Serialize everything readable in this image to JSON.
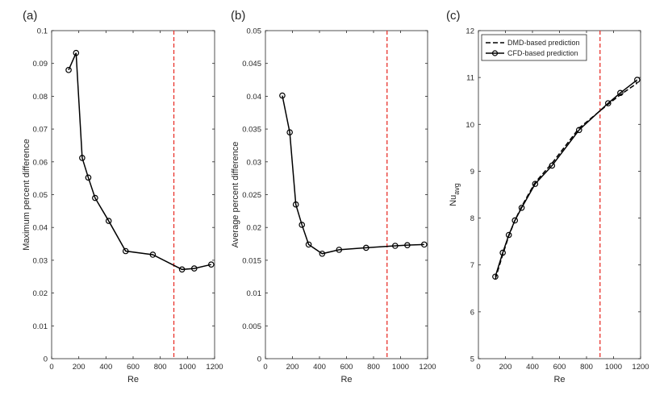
{
  "chart_data": [
    {
      "type": "line",
      "panel_label": "(a)",
      "xlabel": "Re",
      "ylabel": "Maximum percent difference",
      "xlim": [
        0,
        1200
      ],
      "ylim": [
        0,
        0.1
      ],
      "xticks": [
        0,
        200,
        400,
        600,
        800,
        1000,
        1200
      ],
      "yticks": [
        0,
        0.01,
        0.02,
        0.03,
        0.04,
        0.05,
        0.06,
        0.07,
        0.08,
        0.09,
        0.1
      ],
      "ytick_labels": [
        "0",
        "0.01",
        "0.02",
        "0.03",
        "0.04",
        "0.05",
        "0.06",
        "0.07",
        "0.08",
        "0.09",
        "0.1"
      ],
      "grid": false,
      "reference_line": {
        "x": 900,
        "style": "dashed",
        "color": "#e8322b"
      },
      "series": [
        {
          "x": [
            125,
            180,
            225,
            270,
            320,
            420,
            545,
            745,
            960,
            1050,
            1175
          ],
          "y": [
            0.088,
            0.0932,
            0.0612,
            0.0552,
            0.049,
            0.042,
            0.0328,
            0.0317,
            0.0272,
            0.0275,
            0.0287
          ],
          "color": "#000000",
          "marker": "circle",
          "linestyle": "solid"
        }
      ]
    },
    {
      "type": "line",
      "panel_label": "(b)",
      "xlabel": "Re",
      "ylabel": "Average percent difference",
      "xlim": [
        0,
        1200
      ],
      "ylim": [
        0,
        0.05
      ],
      "xticks": [
        0,
        200,
        400,
        600,
        800,
        1000,
        1200
      ],
      "yticks": [
        0,
        0.005,
        0.01,
        0.015,
        0.02,
        0.025,
        0.03,
        0.035,
        0.04,
        0.045,
        0.05
      ],
      "ytick_labels": [
        "0",
        "0.005",
        "0.01",
        "0.015",
        "0.02",
        "0.025",
        "0.03",
        "0.035",
        "0.04",
        "0.045",
        "0.05"
      ],
      "grid": false,
      "reference_line": {
        "x": 900,
        "style": "dashed",
        "color": "#e8322b"
      },
      "series": [
        {
          "x": [
            125,
            180,
            225,
            270,
            320,
            420,
            545,
            745,
            960,
            1050,
            1175
          ],
          "y": [
            0.0401,
            0.0345,
            0.0235,
            0.0204,
            0.0174,
            0.016,
            0.0166,
            0.0169,
            0.0172,
            0.0173,
            0.0174
          ],
          "color": "#000000",
          "marker": "circle",
          "linestyle": "solid"
        }
      ]
    },
    {
      "type": "line",
      "panel_label": "(c)",
      "xlabel": "Re",
      "ylabel": "Nu",
      "ylabel_subscript": "avg",
      "xlim": [
        0,
        1200
      ],
      "ylim": [
        5,
        12
      ],
      "xticks": [
        0,
        200,
        400,
        600,
        800,
        1000,
        1200
      ],
      "yticks": [
        5,
        6,
        7,
        8,
        9,
        10,
        11,
        12
      ],
      "ytick_labels": [
        "5",
        "6",
        "7",
        "8",
        "9",
        "10",
        "11",
        "12"
      ],
      "grid": false,
      "legend_position": "top-left",
      "reference_line": {
        "x": 900,
        "style": "dashed",
        "color": "#e8322b"
      },
      "series": [
        {
          "name": "DMD-based prediction",
          "x": [
            125,
            180,
            225,
            270,
            320,
            420,
            545,
            745,
            960,
            1050,
            1175
          ],
          "y": [
            6.7,
            7.22,
            7.62,
            7.95,
            8.25,
            8.76,
            9.17,
            9.92,
            10.43,
            10.63,
            10.88
          ],
          "color": "#000000",
          "marker": "none",
          "linestyle": "dashed"
        },
        {
          "name": "CFD-based prediction",
          "x": [
            125,
            180,
            225,
            270,
            320,
            420,
            545,
            745,
            960,
            1050,
            1175
          ],
          "y": [
            6.75,
            7.26,
            7.64,
            7.95,
            8.22,
            8.73,
            9.12,
            9.88,
            10.45,
            10.67,
            10.95
          ],
          "color": "#000000",
          "marker": "circle",
          "linestyle": "solid"
        }
      ]
    }
  ]
}
